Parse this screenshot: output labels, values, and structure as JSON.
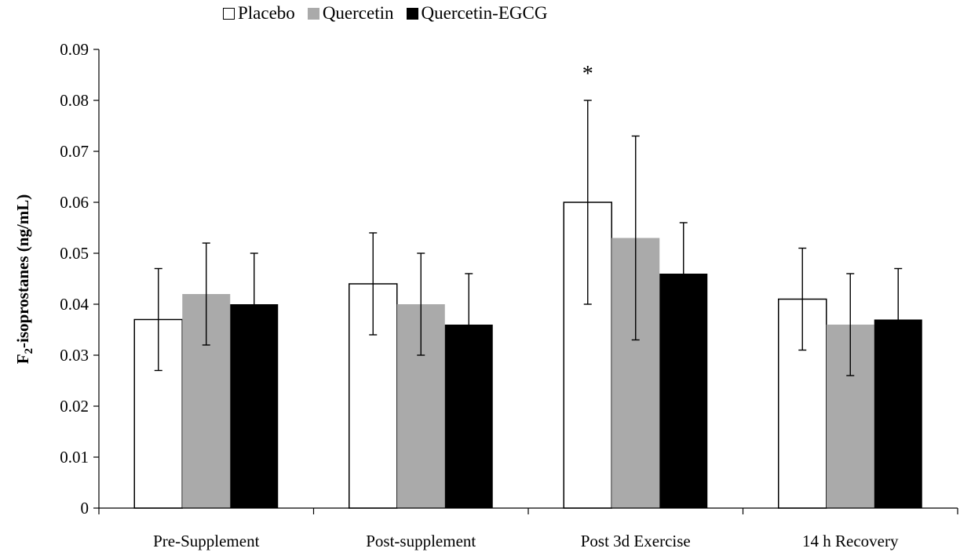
{
  "chart_data": {
    "type": "bar",
    "categories": [
      "Pre-Supplement",
      "Post-supplement",
      "Post 3d Exercise",
      "14 h Recovery"
    ],
    "series": [
      {
        "name": "Placebo",
        "color": "#ffffff",
        "values": [
          0.037,
          0.044,
          0.06,
          0.041
        ],
        "errors": [
          0.01,
          0.01,
          0.02,
          0.01
        ]
      },
      {
        "name": "Quercetin",
        "color": "#aaaaaa",
        "values": [
          0.042,
          0.04,
          0.053,
          0.036
        ],
        "errors": [
          0.01,
          0.01,
          0.02,
          0.01
        ]
      },
      {
        "name": "Quercetin-EGCG",
        "color": "#000000",
        "values": [
          0.04,
          0.036,
          0.046,
          0.037
        ],
        "errors": [
          0.01,
          0.01,
          0.01,
          0.01
        ]
      }
    ],
    "ylabel": {
      "base": "F",
      "sub": "2",
      "rest": "-isoprostanes (ng/mL)"
    },
    "ylim": [
      0,
      0.09
    ],
    "yticks": [
      "0",
      "0.01",
      "0.02",
      "0.03",
      "0.04",
      "0.05",
      "0.06",
      "0.07",
      "0.08",
      "0.09"
    ],
    "annotations": [
      {
        "text": "*",
        "category": "Post 3d Exercise",
        "y": 0.086
      }
    ],
    "grid": false,
    "legend_position": "top"
  }
}
